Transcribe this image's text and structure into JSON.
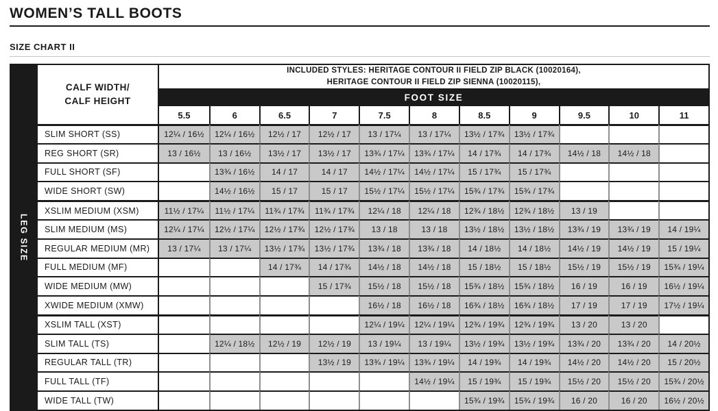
{
  "page": {
    "title": "WOMEN’S TALL BOOTS",
    "subtitle": "SIZE CHART II"
  },
  "colors": {
    "ink_black": "#1a1a1a",
    "cell_gray": "#c9c9c9",
    "grid_gray": "#8e8e8e"
  },
  "table": {
    "corner_line1": "CALF WIDTH/",
    "corner_line2": "CALF HEIGHT",
    "included_styles_line1": "INCLUDED STYLES: HERITAGE CONTOUR II FIELD ZIP BLACK (10020164),",
    "included_styles_line2": "HERITAGE CONTOUR II FIELD ZIP SIENNA (10020115),",
    "foot_size_label": "FOOT SIZE",
    "leg_size_label": "LEG SIZE",
    "foot_sizes": [
      "5.5",
      "6",
      "6.5",
      "7",
      "7.5",
      "8",
      "8.5",
      "9",
      "9.5",
      "10",
      "11"
    ],
    "rows": [
      {
        "label": "SLIM SHORT (SS)",
        "group": "short",
        "cells": [
          "12¼ / 16½",
          "12¼ / 16½",
          "12½ / 17",
          "12½ / 17",
          "13 / 17¼",
          "13 / 17¼",
          "13½ / 17¾",
          "13½ / 17¾",
          "",
          "",
          ""
        ]
      },
      {
        "label": "REG SHORT (SR)",
        "group": "short",
        "cells": [
          "13 / 16½",
          "13 / 16½",
          "13½ / 17",
          "13½ / 17",
          "13¾ / 17¼",
          "13¾ / 17¼",
          "14 / 17¾",
          "14 / 17¾",
          "14½ / 18",
          "14½ / 18",
          ""
        ]
      },
      {
        "label": "FULL SHORT (SF)",
        "group": "short",
        "cells": [
          "",
          "13¾ / 16½",
          "14 / 17",
          "14 / 17",
          "14½ / 17¼",
          "14½ / 17¼",
          "15 / 17¾",
          "15 / 17¾",
          "",
          "",
          ""
        ]
      },
      {
        "label": "WIDE SHORT (SW)",
        "group": "short",
        "cells": [
          "",
          "14½ / 16½",
          "15 / 17",
          "15 / 17",
          "15½ / 17¼",
          "15½ / 17¼",
          "15¾ / 17¾",
          "15¾ / 17¾",
          "",
          "",
          ""
        ]
      },
      {
        "label": "XSLIM MEDIUM (XSM)",
        "group": "medium",
        "cells": [
          "11½ / 17¼",
          "11½ / 17¼",
          "11¾ / 17¾",
          "11¾ / 17¾",
          "12¼ / 18",
          "12¼ / 18",
          "12¾ / 18½",
          "12¾ / 18½",
          "13 / 19",
          "",
          ""
        ]
      },
      {
        "label": "SLIM MEDIUM (MS)",
        "group": "medium",
        "cells": [
          "12¼ / 17¼",
          "12½ / 17¼",
          "12½ / 17¾",
          "12½ / 17¾",
          "13 / 18",
          "13 / 18",
          "13½ / 18½",
          "13½ / 18½",
          "13¾ / 19",
          "13¾ / 19",
          "14 / 19¼"
        ]
      },
      {
        "label": "REGULAR  MEDIUM (MR)",
        "group": "medium",
        "cells": [
          "13 / 17¼",
          "13 / 17¼",
          "13½ / 17¾",
          "13½ / 17¾",
          "13¾ / 18",
          "13¾ / 18",
          "14 / 18½",
          "14 / 18½",
          "14½ / 19",
          "14½ / 19",
          "15 / 19¼"
        ]
      },
      {
        "label": "FULL MEDIUM (MF)",
        "group": "medium",
        "cells": [
          "",
          "",
          "14 / 17¾",
          "14 / 17¾",
          "14½ / 18",
          "14½ / 18",
          "15 / 18½",
          "15 / 18½",
          "15½ / 19",
          "15½ / 19",
          "15¾ / 19¼"
        ]
      },
      {
        "label": "WIDE MEDIUM (MW)",
        "group": "medium",
        "cells": [
          "",
          "",
          "",
          "15 / 17¾",
          "15½ / 18",
          "15½ / 18",
          "15¾ / 18½",
          "15¾ / 18½",
          "16 / 19",
          "16 / 19",
          "16½ / 19¼"
        ]
      },
      {
        "label": "XWIDE MEDIUM (XMW)",
        "group": "medium",
        "cells": [
          "",
          "",
          "",
          "",
          "16½ / 18",
          "16½ / 18",
          "16¾ / 18½",
          "16¾ / 18½",
          "17 / 19",
          "17 / 19",
          "17½ / 19¼"
        ]
      },
      {
        "label": "XSLIM TALL (XST)",
        "group": "tall",
        "cells": [
          "",
          "",
          "",
          "",
          "12¼ / 19¼",
          "12¼ / 19¼",
          "12¾ / 19¾",
          "12¾ / 19¾",
          "13 / 20",
          "13 / 20",
          ""
        ]
      },
      {
        "label": "SLIM TALL (TS)",
        "group": "tall",
        "cells": [
          "",
          "12¼ / 18½",
          "12½ / 19",
          "12½ / 19",
          "13 / 19¼",
          "13 / 19¼",
          "13½ / 19¾",
          "13½ / 19¾",
          "13¾ / 20",
          "13¾ / 20",
          "14 / 20½"
        ]
      },
      {
        "label": "REGULAR TALL (TR)",
        "group": "tall",
        "cells": [
          "",
          "",
          "",
          "13½ / 19",
          "13¾ / 19¼",
          "13¾ / 19¼",
          "14 / 19¾",
          "14 / 19¾",
          "14½ / 20",
          "14½ / 20",
          "15 / 20½"
        ]
      },
      {
        "label": "FULL TALL (TF)",
        "group": "tall",
        "cells": [
          "",
          "",
          "",
          "",
          "",
          "14½ / 19¼",
          "15 / 19¾",
          "15 / 19¾",
          "15½ / 20",
          "15½ / 20",
          "15¾ / 20½"
        ]
      },
      {
        "label": "WIDE TALL (TW)",
        "group": "tall",
        "cells": [
          "",
          "",
          "",
          "",
          "",
          "",
          "15¾ / 19¾",
          "15¾ / 19¾",
          "16 / 20",
          "16 / 20",
          "16½ / 20½"
        ]
      }
    ]
  }
}
